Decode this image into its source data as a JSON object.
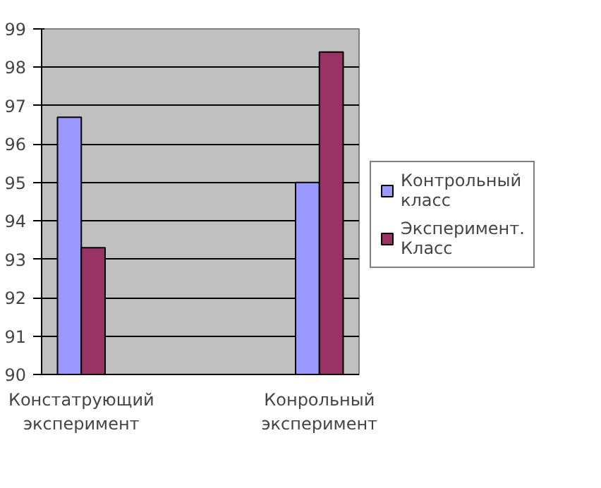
{
  "chart_data": {
    "type": "bar",
    "categories": [
      "Констатрующий эксперимент",
      null,
      null,
      "Конрольный эксперимент"
    ],
    "series": [
      {
        "name": "Контрольный класс",
        "color": "#9999ff",
        "values": [
          96.7,
          null,
          null,
          95.0
        ]
      },
      {
        "name": "Эксперимент. Класс",
        "color": "#993366",
        "values": [
          93.3,
          null,
          null,
          98.4
        ]
      }
    ],
    "ylim": [
      90,
      99
    ],
    "yticks": [
      90,
      91,
      92,
      93,
      94,
      95,
      96,
      97,
      98,
      99
    ],
    "grid": "y",
    "legend": "right"
  }
}
